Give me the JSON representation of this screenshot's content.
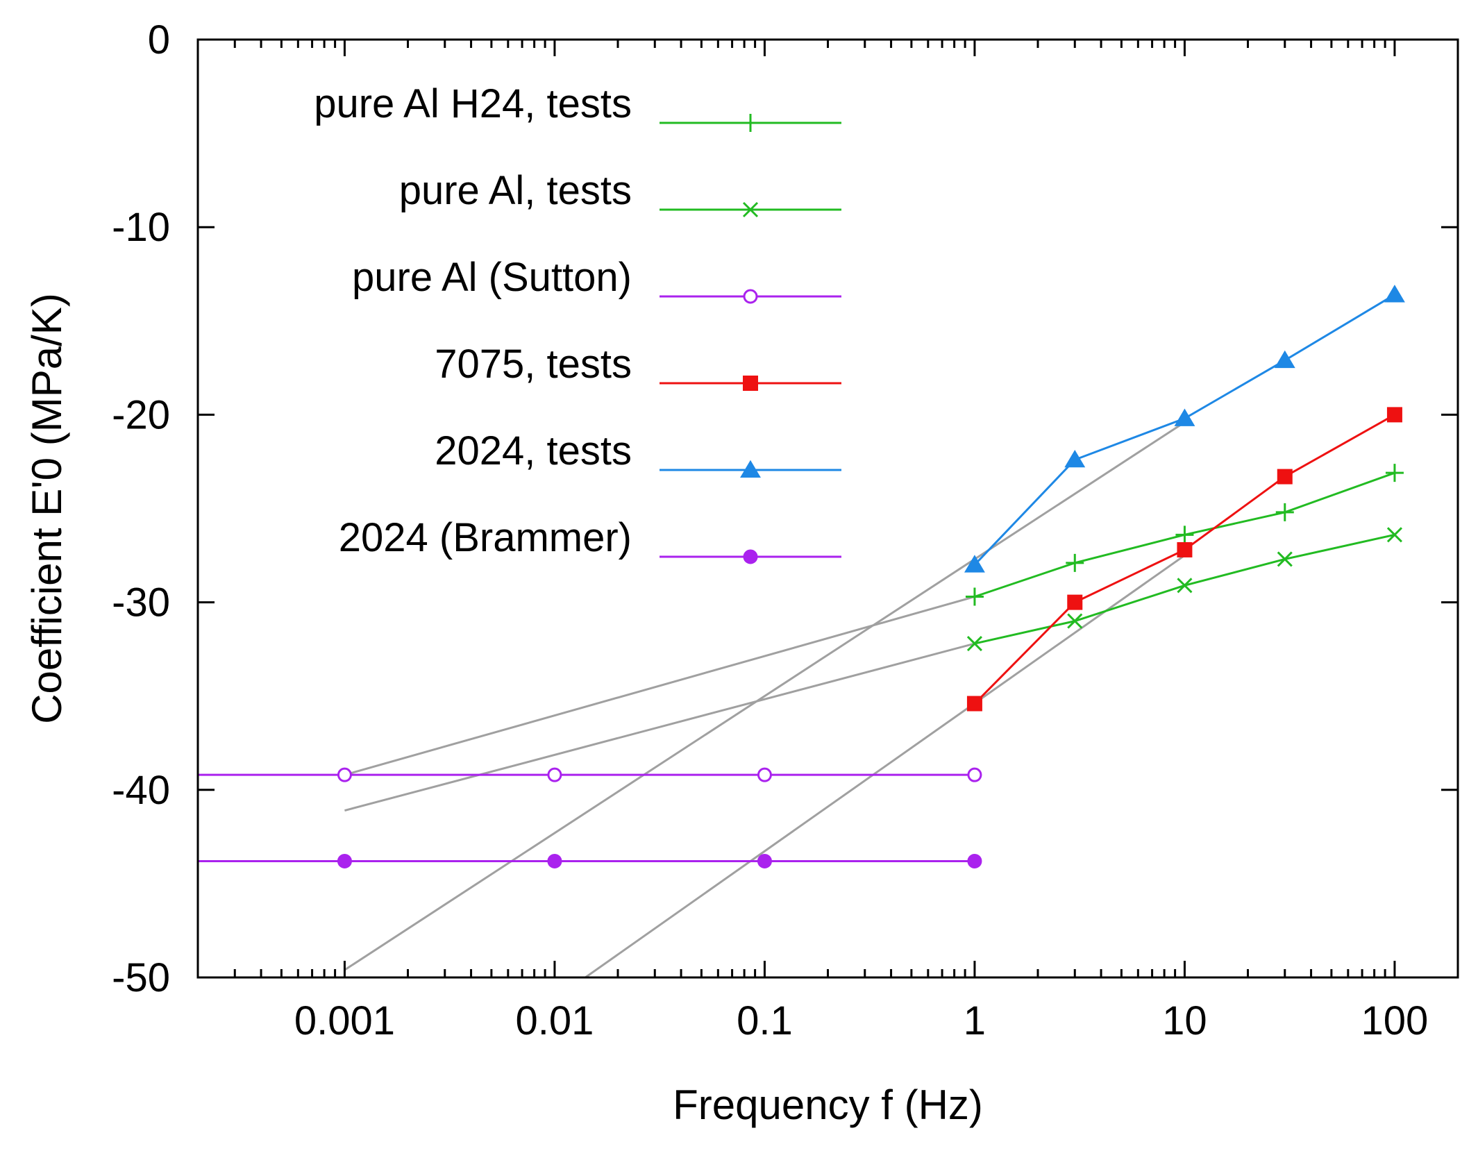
{
  "chart_data": {
    "type": "line",
    "xlabel": "Frequency  f  (Hz)",
    "ylabel": "Coefficient  E'0  (MPa/K)",
    "xscale": "log",
    "xlim": [
      0.0002,
      200
    ],
    "ylim": [
      -50,
      0
    ],
    "x_ticks": [
      {
        "value": 0.001,
        "label": "0.001"
      },
      {
        "value": 0.01,
        "label": "0.01"
      },
      {
        "value": 0.1,
        "label": "0.1"
      },
      {
        "value": 1,
        "label": "1"
      },
      {
        "value": 10,
        "label": "10"
      },
      {
        "value": 100,
        "label": "100"
      }
    ],
    "y_ticks": [
      {
        "value": 0,
        "label": "0"
      },
      {
        "value": -10,
        "label": "-10"
      },
      {
        "value": -20,
        "label": "-20"
      },
      {
        "value": -30,
        "label": "-30"
      },
      {
        "value": -40,
        "label": "-40"
      },
      {
        "value": -50,
        "label": "-50"
      }
    ],
    "grid": false,
    "legend_position": "top-left",
    "series": [
      {
        "name": "pure Al H24, tests",
        "color": "#22bb22",
        "marker": "plus",
        "x": [
          1,
          3,
          10,
          30,
          100
        ],
        "y": [
          -29.7,
          -27.9,
          -26.4,
          -25.2,
          -23.1
        ]
      },
      {
        "name": "pure Al, tests",
        "color": "#22bb22",
        "marker": "cross",
        "x": [
          1,
          3,
          10,
          30,
          100
        ],
        "y": [
          -32.2,
          -31.0,
          -29.1,
          -27.7,
          -26.4
        ]
      },
      {
        "name": "pure Al (Sutton)",
        "color": "#aa22ee",
        "marker": "open-circle",
        "extend_left": true,
        "x": [
          0.001,
          0.01,
          0.1,
          1
        ],
        "y": [
          -39.2,
          -39.2,
          -39.2,
          -39.2
        ]
      },
      {
        "name": "7075, tests",
        "color": "#ee1111",
        "marker": "filled-square",
        "x": [
          1,
          3,
          10,
          30,
          100
        ],
        "y": [
          -35.4,
          -30.0,
          -27.2,
          -23.3,
          -20.0
        ]
      },
      {
        "name": "2024, tests",
        "color": "#1e88e5",
        "marker": "filled-triangle",
        "x": [
          1,
          3,
          10,
          30,
          100
        ],
        "y": [
          -28.0,
          -22.4,
          -20.2,
          -17.1,
          -13.6
        ]
      },
      {
        "name": "2024 (Brammer)",
        "color": "#aa22ee",
        "marker": "filled-circle",
        "extend_left": true,
        "x": [
          0.001,
          0.01,
          0.1,
          1
        ],
        "y": [
          -43.8,
          -43.8,
          -43.8,
          -43.8
        ]
      }
    ],
    "fit_lines": {
      "color": "#a0a0a0",
      "lines": [
        {
          "x": [
            0.001,
            1
          ],
          "y": [
            -39.2,
            -29.7
          ]
        },
        {
          "x": [
            0.001,
            1
          ],
          "y": [
            -41.1,
            -32.2
          ]
        },
        {
          "x": [
            0.001,
            10
          ],
          "y": [
            -49.6,
            -20.4
          ]
        },
        {
          "x": [
            0.014,
            10
          ],
          "y": [
            -50,
            -27.5
          ]
        }
      ]
    }
  }
}
